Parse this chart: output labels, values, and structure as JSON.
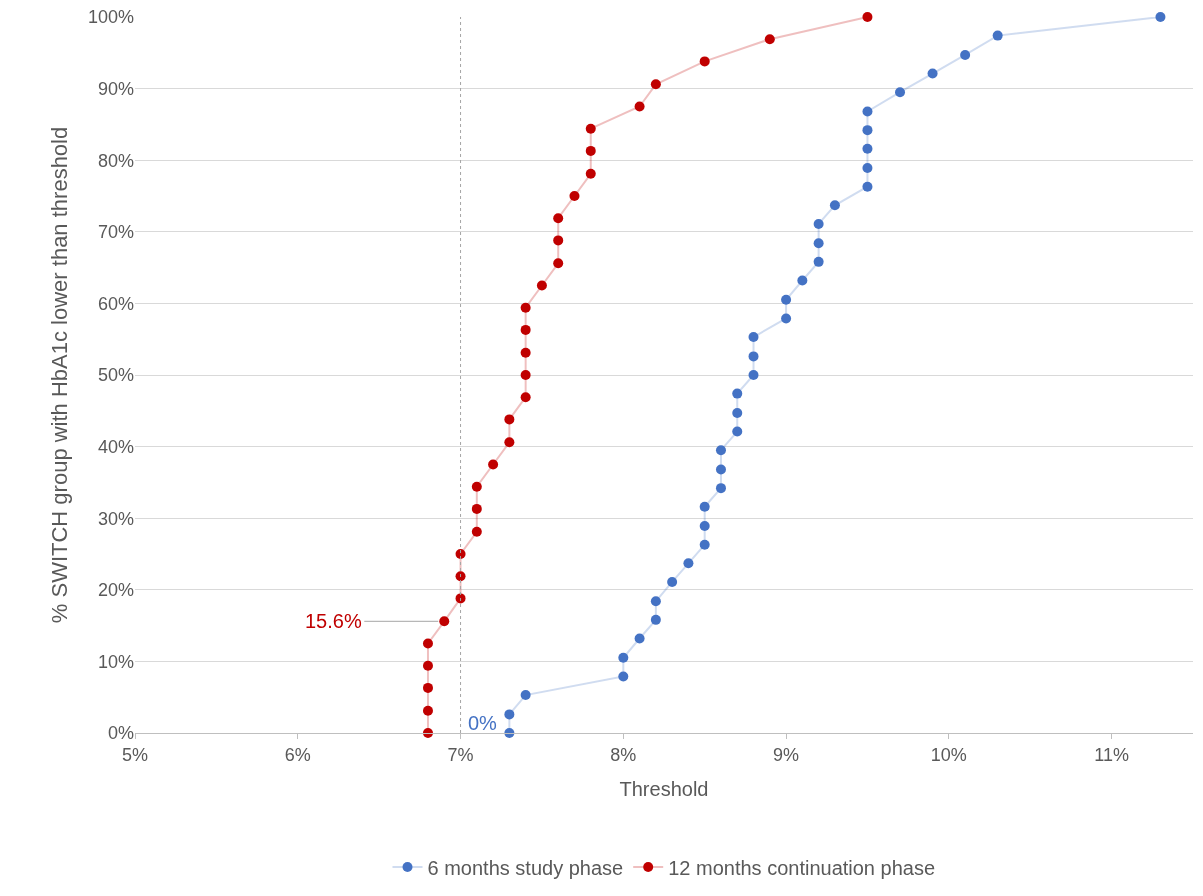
{
  "chart_data": {
    "type": "line",
    "xlabel": "Threshold",
    "ylabel": "% SWITCH group with HbA1c lower than threshold",
    "xlim": [
      5,
      11.5
    ],
    "xticks": [
      {
        "value": 5,
        "label": "5%"
      },
      {
        "value": 6,
        "label": "6%"
      },
      {
        "value": 7,
        "label": "7%"
      },
      {
        "value": 8,
        "label": "8%"
      },
      {
        "value": 9,
        "label": "9%"
      },
      {
        "value": 10,
        "label": "10%"
      },
      {
        "value": 11,
        "label": "11%"
      }
    ],
    "ylim": [
      0,
      100
    ],
    "yticks": [
      {
        "value": 0,
        "label": "0%"
      },
      {
        "value": 10,
        "label": "10%"
      },
      {
        "value": 20,
        "label": "20%"
      },
      {
        "value": 30,
        "label": "30%"
      },
      {
        "value": 40,
        "label": "40%"
      },
      {
        "value": 50,
        "label": "50%"
      },
      {
        "value": 60,
        "label": "60%"
      },
      {
        "value": 70,
        "label": "70%"
      },
      {
        "value": 80,
        "label": "80%"
      },
      {
        "value": 90,
        "label": "90%"
      },
      {
        "value": 100,
        "label": "100%"
      }
    ],
    "grid": "y",
    "legend": "bottom",
    "marker": "circle",
    "line_style": "solid",
    "ref_lines": [
      {
        "axis": "x",
        "value": 7,
        "label": null,
        "color": "#a6a6a6",
        "line_style": "dotted"
      }
    ],
    "annotations": [
      {
        "text": "15.6%",
        "x": 6.9,
        "y": 15.6
      },
      {
        "text": "0%",
        "x": 7.3,
        "y": 0
      }
    ],
    "series": [
      {
        "name": "6 months study phase",
        "color": "#4472c4",
        "x": [
          7.3,
          7.3,
          7.4,
          8.0,
          8.0,
          8.1,
          8.2,
          8.2,
          8.3,
          8.4,
          8.5,
          8.5,
          8.5,
          8.6,
          8.6,
          8.6,
          8.7,
          8.7,
          8.7,
          8.8,
          8.8,
          8.8,
          9.0,
          9.0,
          9.1,
          9.2,
          9.2,
          9.2,
          9.3,
          9.5,
          9.5,
          9.5,
          9.5,
          9.5,
          9.7,
          9.9,
          10.1,
          10.3,
          11.3
        ],
        "values": [
          0,
          2.6,
          5.3,
          7.9,
          10.5,
          13.2,
          15.8,
          18.4,
          21.1,
          23.7,
          26.3,
          28.9,
          31.6,
          34.2,
          36.8,
          39.5,
          42.1,
          44.7,
          47.4,
          50,
          52.6,
          55.3,
          57.9,
          60.5,
          63.2,
          65.8,
          68.4,
          71.1,
          73.7,
          76.3,
          78.9,
          81.6,
          84.2,
          86.8,
          89.5,
          92.1,
          94.7,
          97.4,
          100
        ]
      },
      {
        "name": "12 months continuation phase",
        "color": "#c00000",
        "x": [
          6.8,
          6.8,
          6.8,
          6.8,
          6.8,
          6.9,
          7.0,
          7.0,
          7.0,
          7.1,
          7.1,
          7.1,
          7.2,
          7.3,
          7.3,
          7.4,
          7.4,
          7.4,
          7.4,
          7.4,
          7.5,
          7.6,
          7.6,
          7.6,
          7.7,
          7.8,
          7.8,
          7.8,
          8.1,
          8.2,
          8.5,
          8.9,
          9.5
        ],
        "values": [
          0,
          3.1,
          6.3,
          9.4,
          12.5,
          15.6,
          18.8,
          21.9,
          25,
          28.1,
          31.3,
          34.4,
          37.5,
          40.6,
          43.8,
          46.9,
          50,
          53.1,
          56.3,
          59.4,
          62.5,
          65.6,
          68.8,
          71.9,
          75,
          78.1,
          81.3,
          84.4,
          87.5,
          90.6,
          93.8,
          96.9,
          100
        ]
      }
    ]
  }
}
